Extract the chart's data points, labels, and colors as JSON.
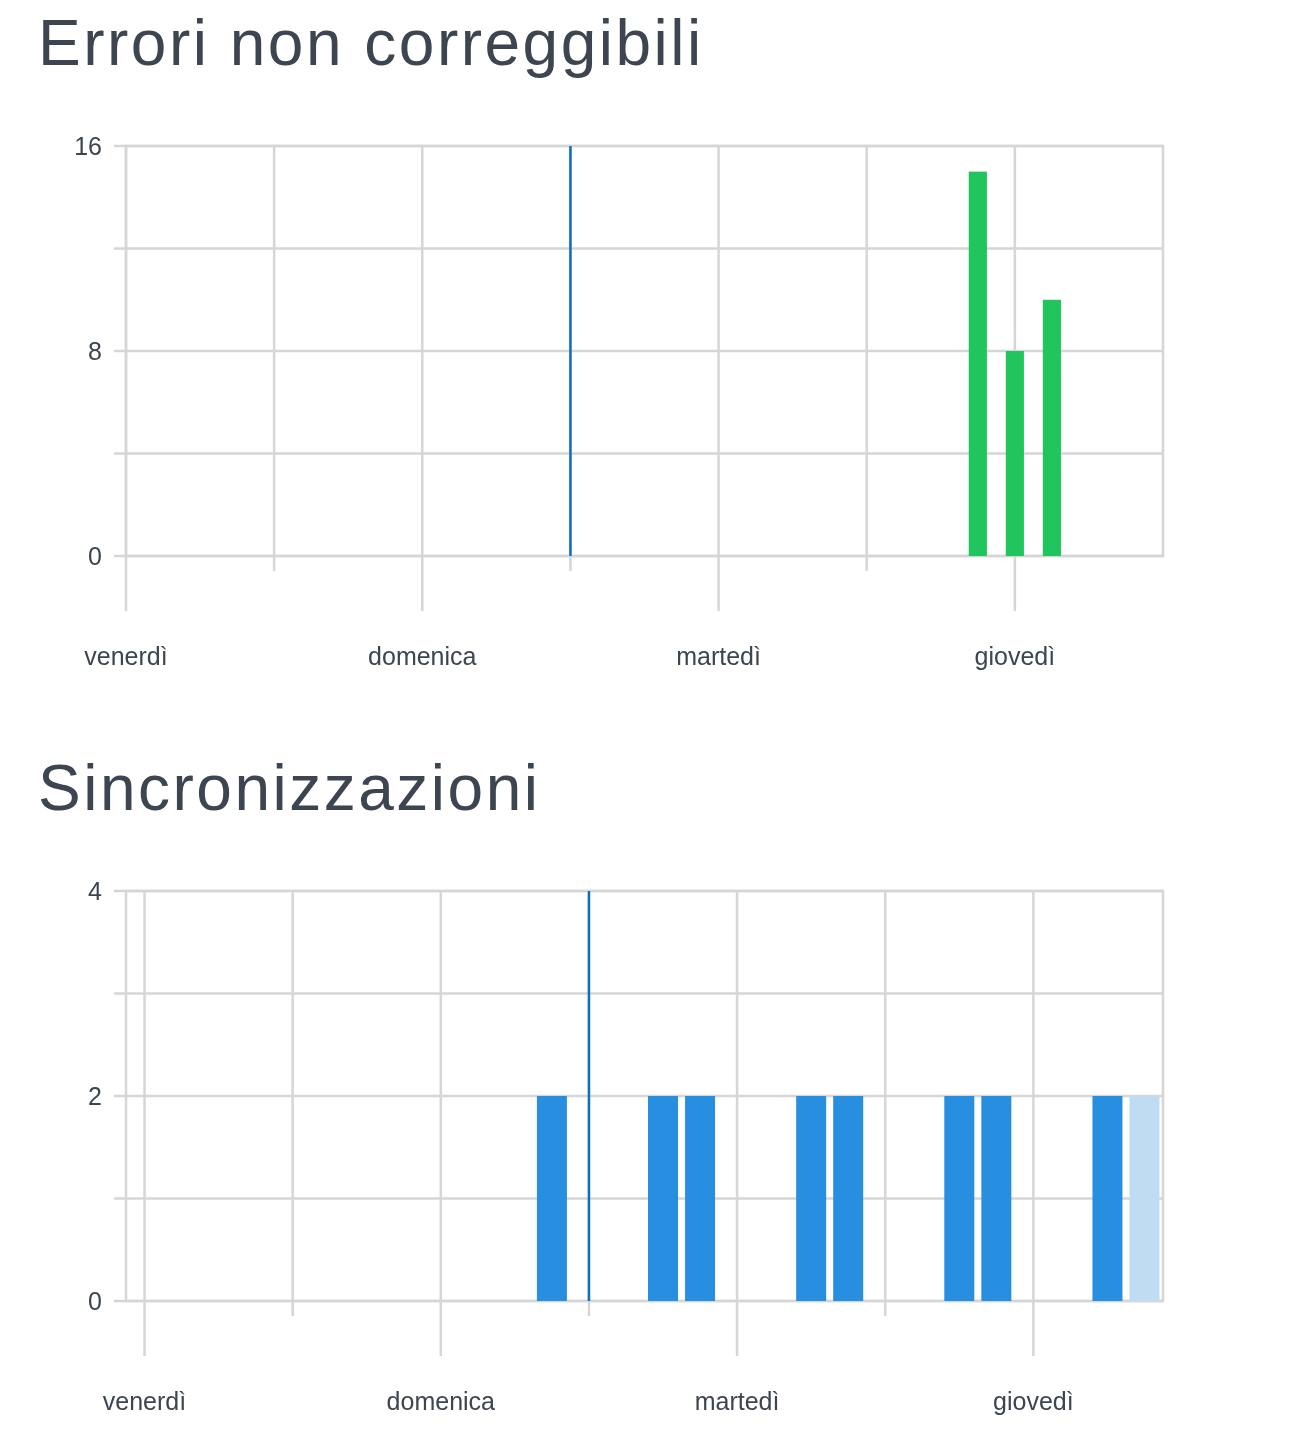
{
  "chart_data": [
    {
      "type": "bar",
      "title": "Errori non correggibili",
      "categories": [
        "venerdì",
        null,
        null,
        null,
        null,
        null,
        null,
        null,
        "domenica",
        null,
        null,
        null,
        null,
        null,
        null,
        null,
        "martedì",
        null,
        null,
        null,
        null,
        null,
        null,
        null,
        "giovedì",
        null,
        null,
        null
      ],
      "values": [
        null,
        null,
        null,
        null,
        null,
        null,
        null,
        null,
        null,
        null,
        null,
        null,
        null,
        null,
        null,
        null,
        null,
        null,
        null,
        null,
        null,
        null,
        null,
        15,
        8,
        10,
        null,
        null
      ],
      "color": "#21c55d",
      "ylim": [
        0,
        16
      ],
      "yticks": [
        0,
        {
          "value": 4,
          "label": null
        },
        8,
        {
          "value": 12,
          "label": null
        },
        16
      ],
      "grid": true
    },
    {
      "type": "bar",
      "title": "Sincronizzazioni",
      "categories": [
        "venerdì",
        null,
        null,
        null,
        null,
        null,
        null,
        null,
        "domenica",
        null,
        null,
        null,
        null,
        null,
        null,
        null,
        "martedì",
        null,
        null,
        null,
        null,
        null,
        null,
        null,
        "giovedì",
        null,
        null,
        null
      ],
      "values": [
        null,
        null,
        null,
        null,
        null,
        null,
        null,
        null,
        null,
        null,
        null,
        2,
        null,
        null,
        2,
        2,
        null,
        null,
        2,
        2,
        null,
        null,
        2,
        2,
        null,
        null,
        2,
        2
      ],
      "colors": [
        null,
        null,
        null,
        null,
        null,
        null,
        null,
        null,
        null,
        null,
        null,
        "#288ee0",
        null,
        null,
        "#288ee0",
        "#288ee0",
        null,
        null,
        "#288ee0",
        "#288ee0",
        null,
        null,
        "#288ee0",
        "#288ee0",
        null,
        null,
        "#288ee0",
        "#bfdcf3"
      ],
      "ylim": [
        0,
        4
      ],
      "yticks": [
        0,
        {
          "value": 1,
          "label": null
        },
        2,
        {
          "value": 3,
          "label": null
        },
        4
      ],
      "grid": true
    }
  ]
}
